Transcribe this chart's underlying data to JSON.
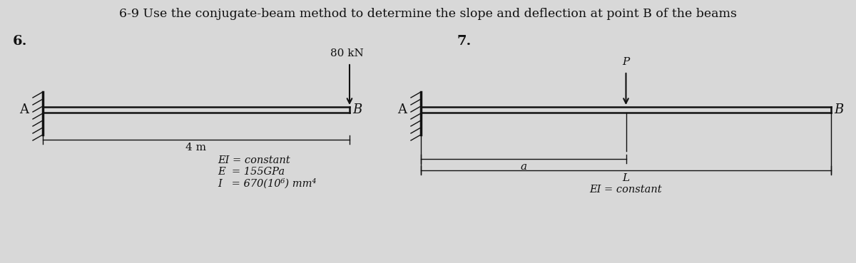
{
  "title": "6-9 Use the conjugate-beam method to determine the slope and deflection at point B of the beams",
  "title_fontsize": 12.5,
  "bg_color": "#d8d8d8",
  "text_color": "#111111",
  "fig6_label": "6.",
  "fig6_load_label": "80 kN",
  "fig6_A_label": "A",
  "fig6_B_label": "B",
  "fig6_dim_label": "4 m",
  "fig6_EI_line1": "EI = constant",
  "fig6_EI_line2": "E  = 155GPa",
  "fig6_EI_line3": "I   = 670(10⁶) mm⁴",
  "fig7_label": "7.",
  "fig7_P_label": "P",
  "fig7_A_label": "A",
  "fig7_B_label": "B",
  "fig7_a_label": "a",
  "fig7_L_label": "L",
  "fig7_EI_label": "EI = constant",
  "beam_color": "#111111",
  "wall_color": "#111111",
  "arrow_color": "#111111",
  "dim_color": "#111111"
}
